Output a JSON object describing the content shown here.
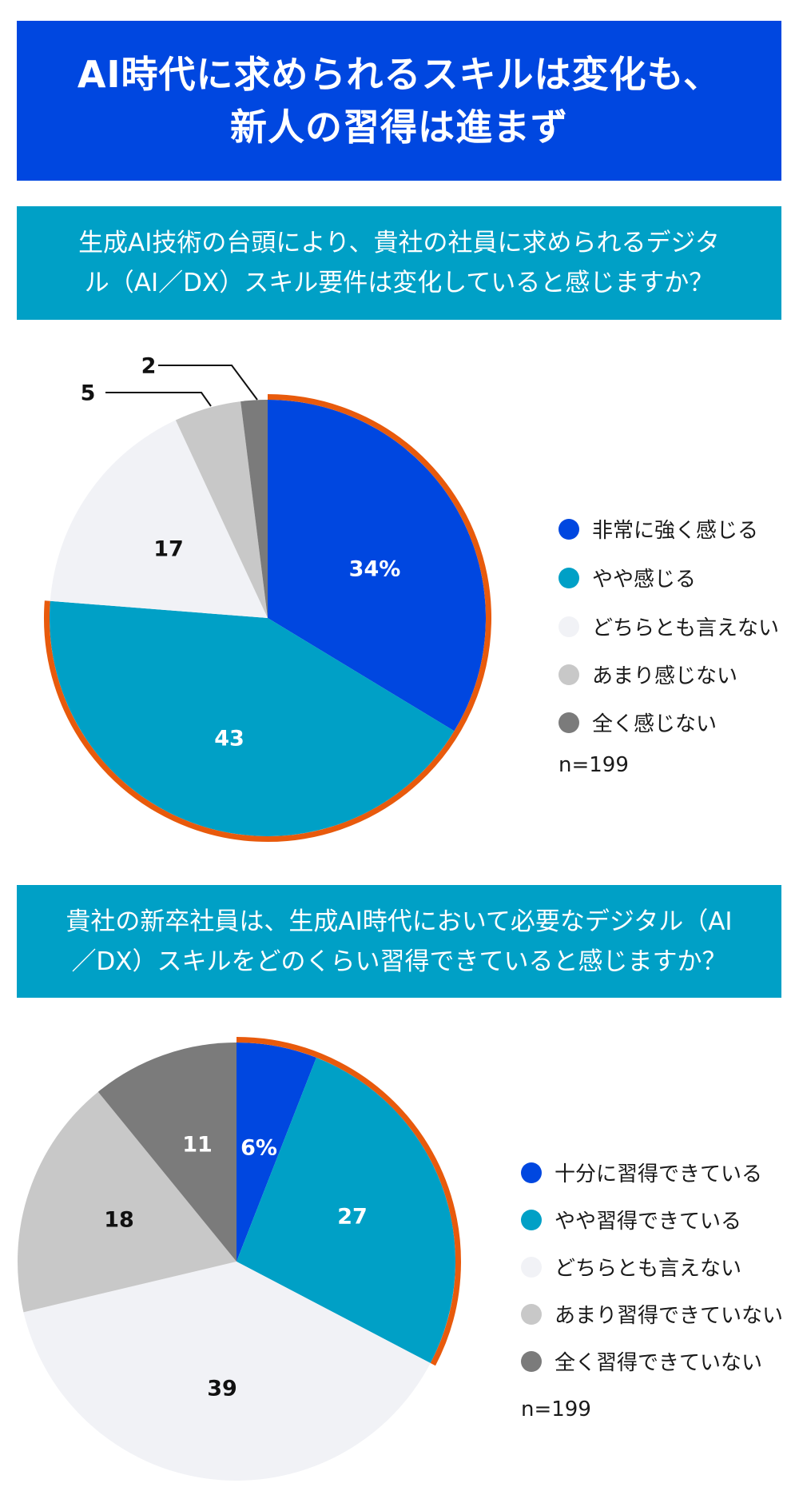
{
  "title": {
    "lines": [
      "AI時代に求められるスキルは変化も、",
      "新人の習得は進まず"
    ],
    "background": "#0047E0"
  },
  "question1": {
    "lines": [
      "生成AI技術の台頭により、貴社の社員に求められるデジタ",
      "ル（AI／DX）スキル要件は変化していると感じますか？"
    ],
    "background": "#00A0C6"
  },
  "question2": {
    "lines": [
      "貴社の新卒社員は、生成AI時代において必要なデジタル（AI",
      "／DX）スキルをどのくらい習得できていると感じますか？"
    ],
    "background": "#00A0C6"
  },
  "colors": {
    "strong": "#0047E0",
    "somewhat": "#00A0C6",
    "neutral": "#F1F2F6",
    "not_much": "#C8C8C8",
    "not_at_all": "#7B7B7B",
    "highlight_ring": "#E85A0C"
  },
  "chart_data": [
    {
      "type": "pie",
      "title": "生成AI技術の台頭により、貴社の社員に求められるデジタル（AI／DX）スキル要件は変化していると感じますか？",
      "categories": [
        "非常に強く感じる",
        "やや感じる",
        "どちらとも言えない",
        "あまり感じない",
        "全く感じない"
      ],
      "values": [
        34,
        43,
        17,
        5,
        2
      ],
      "labels": [
        "34%",
        "43",
        "17",
        "5",
        "2"
      ],
      "unit": "%",
      "n_label": "n=199",
      "highlighted_categories": [
        "非常に強く感じる",
        "やや感じる"
      ],
      "legend_position": "right"
    },
    {
      "type": "pie",
      "title": "貴社の新卒社員は、生成AI時代において必要なデジタル（AI／DX）スキルをどのくらい習得できていると感じますか？",
      "categories": [
        "十分に習得できている",
        "やや習得できている",
        "どちらとも言えない",
        "あまり習得できていない",
        "全く習得できていない"
      ],
      "values": [
        6,
        27,
        39,
        18,
        11
      ],
      "labels": [
        "6%",
        "27",
        "39",
        "18",
        "11"
      ],
      "unit": "%",
      "n_label": "n=199",
      "highlighted_categories": [
        "十分に習得できている",
        "やや習得できている"
      ],
      "legend_position": "right"
    }
  ],
  "legend1": {
    "items": [
      "非常に強く感じる",
      "やや感じる",
      "どちらとも言えない",
      "あまり感じない",
      "全く感じない"
    ],
    "n": "n=199"
  },
  "legend2": {
    "items": [
      "十分に習得できている",
      "やや習得できている",
      "どちらとも言えない",
      "あまり習得できていない",
      "全く習得できていない"
    ],
    "n": "n=199"
  }
}
